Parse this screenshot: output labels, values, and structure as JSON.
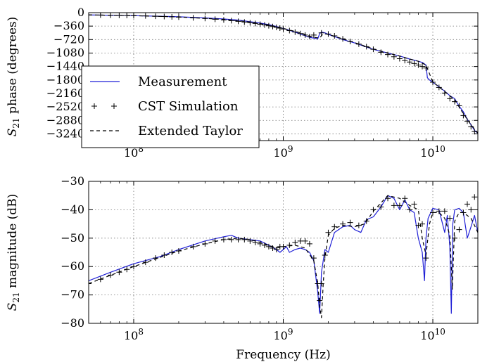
{
  "chart_data": [
    {
      "type": "line",
      "xlabel": "",
      "ylabel_main": "S",
      "ylabel_sub": "21",
      "ylabel_rest": " phase (degrees)",
      "xscale": "log",
      "xlim": [
        50000000,
        20000000000
      ],
      "ylim": [
        -3420,
        0
      ],
      "yticks": [
        0,
        -360,
        -720,
        -1080,
        -1440,
        -1800,
        -2160,
        -2520,
        -2880,
        -3240
      ],
      "ytick_labels": [
        "0",
        "−360",
        "−720",
        "−1080",
        "−1440",
        "−1800",
        "−2160",
        "−2520",
        "−2880",
        "−3240"
      ],
      "xticks": [
        {
          "value": 100000000,
          "base": "10",
          "exp": "8"
        },
        {
          "value": 1000000000,
          "base": "10",
          "exp": "9"
        },
        {
          "value": 10000000000,
          "base": "10",
          "exp": "10"
        }
      ],
      "grid": true,
      "legend_placement": "lower-left",
      "legend": [
        {
          "label": "Measurement",
          "style": "solid-blue"
        },
        {
          "label": "CST Simulation",
          "style": "plus-markers"
        },
        {
          "label": "Extended Taylor",
          "style": "dashed-black"
        }
      ],
      "series": [
        {
          "name": "Measurement",
          "style": "solid-blue",
          "x": [
            50000000,
            70000000,
            100000000,
            150000000,
            200000000,
            300000000,
            400000000,
            500000000,
            600000000,
            700000000,
            800000000,
            900000000,
            1000000000,
            1200000000,
            1500000000,
            1700000000,
            1750000000,
            1800000000,
            1900000000,
            2000000000,
            2200000000,
            2500000000,
            3000000000,
            3500000000,
            4000000000,
            5000000000,
            6000000000,
            7000000000,
            8000000000,
            8500000000,
            9000000000,
            9200000000,
            9500000000,
            10000000000,
            11000000000,
            12000000000,
            13000000000,
            14000000000,
            15000000000,
            16000000000,
            17000000000,
            18000000000,
            19000000000,
            20000000000
          ],
          "y": [
            -60,
            -70,
            -80,
            -95,
            -110,
            -140,
            -170,
            -200,
            -240,
            -280,
            -320,
            -370,
            -420,
            -520,
            -660,
            -700,
            -560,
            -520,
            -540,
            -580,
            -640,
            -720,
            -810,
            -900,
            -980,
            -1080,
            -1160,
            -1240,
            -1300,
            -1330,
            -1400,
            -1740,
            -1800,
            -1860,
            -1980,
            -2100,
            -2220,
            -2300,
            -2500,
            -2650,
            -2850,
            -3000,
            -3150,
            -3220
          ]
        },
        {
          "name": "CST Simulation",
          "style": "plus-markers",
          "x": [
            50000000,
            60000000,
            70000000,
            80000000,
            90000000,
            100000000,
            120000000,
            140000000,
            160000000,
            180000000,
            200000000,
            250000000,
            300000000,
            350000000,
            400000000,
            450000000,
            500000000,
            550000000,
            600000000,
            650000000,
            700000000,
            750000000,
            800000000,
            850000000,
            900000000,
            950000000,
            1000000000,
            1100000000,
            1200000000,
            1300000000,
            1400000000,
            1500000000,
            1600000000,
            1800000000,
            2000000000,
            2200000000,
            2500000000,
            2800000000,
            3200000000,
            3600000000,
            4000000000,
            4500000000,
            5000000000,
            5500000000,
            6000000000,
            6500000000,
            7000000000,
            7500000000,
            8000000000,
            8500000000,
            9000000000,
            10000000000,
            11000000000,
            12000000000,
            13000000000,
            14000000000,
            15000000000,
            16000000000,
            17000000000,
            18000000000,
            19000000000
          ],
          "y": [
            -60,
            -64,
            -68,
            -72,
            -76,
            -80,
            -88,
            -96,
            -104,
            -112,
            -120,
            -138,
            -156,
            -175,
            -194,
            -213,
            -232,
            -251,
            -270,
            -290,
            -310,
            -330,
            -350,
            -370,
            -392,
            -414,
            -436,
            -480,
            -520,
            -560,
            -600,
            -640,
            -600,
            -540,
            -570,
            -620,
            -700,
            -770,
            -840,
            -910,
            -980,
            -1060,
            -1120,
            -1180,
            -1230,
            -1280,
            -1320,
            -1360,
            -1400,
            -1440,
            -1480,
            -1860,
            -2000,
            -2150,
            -2300,
            -2380,
            -2490,
            -2750,
            -2900,
            -3050,
            -3180
          ]
        },
        {
          "name": "Extended Taylor",
          "style": "dashed-black",
          "x": [
            50000000,
            100000000,
            200000000,
            400000000,
            600000000,
            800000000,
            1000000000,
            1300000000,
            1600000000,
            1750000000,
            1850000000,
            2000000000,
            2500000000,
            3000000000,
            4000000000,
            5000000000,
            6000000000,
            7000000000,
            8000000000,
            9000000000,
            10000000000,
            12000000000,
            14000000000,
            16000000000,
            18000000000,
            20000000000
          ],
          "y": [
            -60,
            -80,
            -115,
            -180,
            -250,
            -330,
            -420,
            -540,
            -660,
            -680,
            -560,
            -580,
            -700,
            -800,
            -970,
            -1080,
            -1160,
            -1240,
            -1300,
            -1400,
            -1850,
            -2110,
            -2330,
            -2700,
            -3000,
            -3220
          ]
        }
      ]
    },
    {
      "type": "line",
      "xlabel": "Frequency (Hz)",
      "ylabel_main": "S",
      "ylabel_sub": "21",
      "ylabel_rest": " magnitude (dB)",
      "xscale": "log",
      "xlim": [
        50000000,
        20000000000
      ],
      "ylim": [
        -80,
        -30
      ],
      "yticks": [
        -30,
        -40,
        -50,
        -60,
        -70,
        -80
      ],
      "ytick_labels": [
        "−30",
        "−40",
        "−50",
        "−60",
        "−70",
        "−80"
      ],
      "xticks": [
        {
          "value": 100000000,
          "base": "10",
          "exp": "8"
        },
        {
          "value": 1000000000,
          "base": "10",
          "exp": "9"
        },
        {
          "value": 10000000000,
          "base": "10",
          "exp": "10"
        }
      ],
      "grid": true,
      "series": [
        {
          "name": "Measurement",
          "style": "solid-blue",
          "x": [
            50000000,
            70000000,
            100000000,
            150000000,
            200000000,
            300000000,
            400000000,
            450000000,
            500000000,
            600000000,
            700000000,
            800000000,
            900000000,
            950000000,
            1000000000,
            1050000000,
            1100000000,
            1200000000,
            1300000000,
            1400000000,
            1500000000,
            1600000000,
            1700000000,
            1750000000,
            1800000000,
            1900000000,
            2000000000,
            2200000000,
            2500000000,
            2800000000,
            3000000000,
            3300000000,
            3600000000,
            4000000000,
            4500000000,
            5000000000,
            5500000000,
            6000000000,
            6500000000,
            7000000000,
            7500000000,
            8000000000,
            8500000000,
            8800000000,
            9000000000,
            9300000000,
            10000000000,
            11000000000,
            12000000000,
            12500000000,
            13000000000,
            13300000000,
            13600000000,
            14000000000,
            15000000000,
            16000000000,
            17000000000,
            18000000000,
            19000000000,
            20000000000
          ],
          "y": [
            -65,
            -62,
            -59,
            -56.5,
            -54,
            -51,
            -49.5,
            -49,
            -50,
            -50.5,
            -51,
            -52.5,
            -54,
            -55,
            -54,
            -53,
            -55,
            -54,
            -53.5,
            -54,
            -55,
            -58,
            -69,
            -76.5,
            -62,
            -54,
            -55,
            -48,
            -46,
            -45.5,
            -47,
            -48,
            -43.5,
            -42.5,
            -39,
            -35,
            -36,
            -40,
            -36.5,
            -40,
            -41,
            -50,
            -55,
            -65,
            -50,
            -43,
            -39.5,
            -40,
            -48,
            -42,
            -53,
            -76.5,
            -45,
            -40,
            -39.5,
            -41,
            -50,
            -46,
            -42,
            -48
          ]
        },
        {
          "name": "CST Simulation",
          "style": "plus-markers",
          "x": [
            50000000,
            60000000,
            70000000,
            80000000,
            90000000,
            100000000,
            120000000,
            140000000,
            160000000,
            180000000,
            200000000,
            250000000,
            300000000,
            350000000,
            400000000,
            450000000,
            500000000,
            550000000,
            600000000,
            650000000,
            700000000,
            750000000,
            800000000,
            850000000,
            900000000,
            950000000,
            1000000000,
            1100000000,
            1200000000,
            1300000000,
            1400000000,
            1500000000,
            1600000000,
            1700000000,
            1750000000,
            1800000000,
            1900000000,
            2000000000,
            2200000000,
            2500000000,
            2800000000,
            3200000000,
            3600000000,
            4000000000,
            4500000000,
            5000000000,
            5500000000,
            6000000000,
            6500000000,
            7000000000,
            7500000000,
            8000000000,
            8500000000,
            9000000000,
            10000000000,
            11000000000,
            12000000000,
            13000000000,
            14000000000,
            15000000000,
            16000000000,
            17000000000,
            18000000000,
            19000000000
          ],
          "y": [
            -66,
            -64.5,
            -63,
            -62,
            -61,
            -60,
            -58.5,
            -57,
            -56,
            -55,
            -54.5,
            -53,
            -52,
            -51,
            -50.5,
            -50.5,
            -50.5,
            -50.5,
            -51,
            -51.5,
            -52,
            -52.5,
            -53,
            -53.5,
            -54,
            -53,
            -53,
            -52.5,
            -51.5,
            -51,
            -51,
            -52,
            -57,
            -66,
            -72,
            -66,
            -56,
            -48,
            -46,
            -45,
            -44.5,
            -45.5,
            -44,
            -40,
            -39,
            -36,
            -38.5,
            -38.5,
            -36,
            -40,
            -38,
            -45.5,
            -45,
            -57,
            -41,
            -40.5,
            -40.5,
            -43,
            -50,
            -47,
            -41,
            -38,
            -40,
            -35.5
          ]
        },
        {
          "name": "Extended Taylor",
          "style": "dashed-black",
          "x": [
            50000000,
            100000000,
            200000000,
            300000000,
            400000000,
            500000000,
            600000000,
            700000000,
            800000000,
            900000000,
            1000000000,
            1200000000,
            1400000000,
            1600000000,
            1700000000,
            1750000000,
            1800000000,
            1850000000,
            1900000000,
            2000000000,
            2200000000,
            2500000000,
            3000000000,
            3500000000,
            4000000000,
            5000000000,
            6000000000,
            7000000000,
            8000000000,
            8500000000,
            9000000000,
            9500000000,
            10000000000,
            11000000000,
            12000000000,
            13000000000,
            13500000000,
            14000000000,
            15000000000,
            16000000000,
            18000000000,
            20000000000
          ],
          "y": [
            -66,
            -60,
            -54.5,
            -52,
            -50.5,
            -50,
            -50.5,
            -51.5,
            -52.5,
            -53.5,
            -53,
            -52.5,
            -53.5,
            -58,
            -66,
            -74,
            -78,
            -66,
            -57,
            -49,
            -46.5,
            -45.5,
            -46,
            -45,
            -40.5,
            -35,
            -36,
            -38.5,
            -40,
            -50,
            -56,
            -45,
            -41,
            -41,
            -43,
            -49,
            -68,
            -44,
            -41,
            -41,
            -43,
            -48
          ]
        }
      ]
    }
  ]
}
